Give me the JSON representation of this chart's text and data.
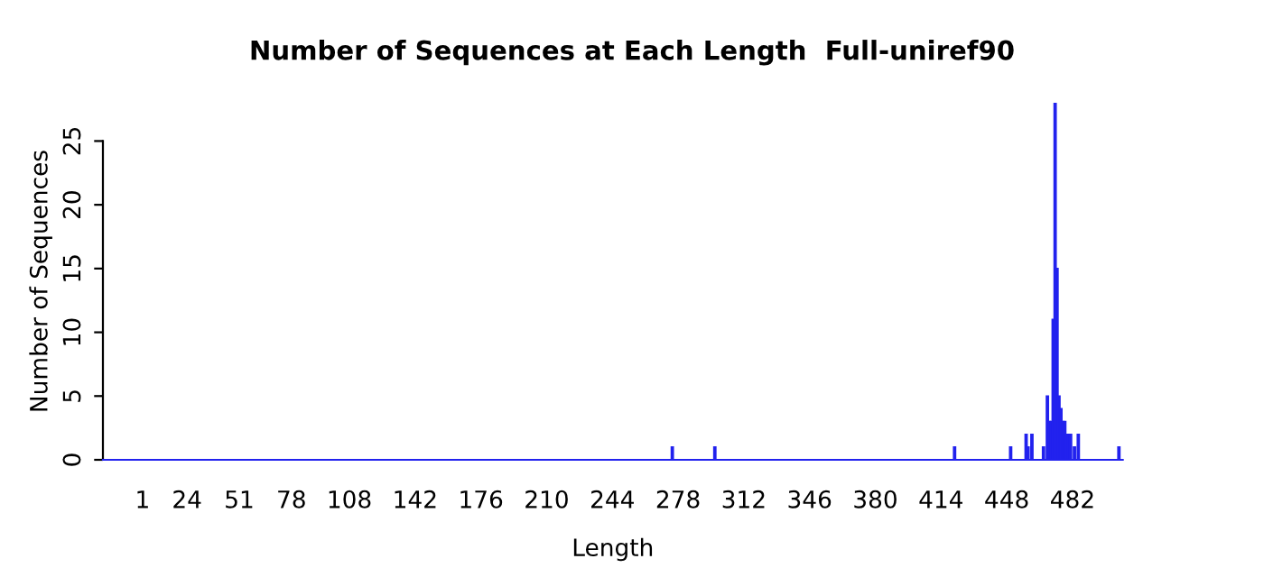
{
  "chart_data": {
    "type": "bar",
    "title": "Number of Sequences at Each Length  Full-uniref90",
    "xlabel": "Length",
    "ylabel": "Number of Sequences",
    "x": [
      275,
      297,
      421,
      450,
      458,
      459,
      461,
      467,
      469,
      470,
      471,
      472,
      473,
      474,
      475,
      476,
      477,
      478,
      479,
      480,
      481,
      483,
      485,
      506
    ],
    "values": [
      1,
      1,
      1,
      1,
      2,
      1,
      2,
      1,
      5,
      3,
      3,
      11,
      28,
      15,
      5,
      4,
      3,
      3,
      2,
      2,
      2,
      1,
      2,
      1
    ],
    "color": "#2222ee",
    "xlim": [
      -19.5,
      508
    ],
    "xticks": [
      1,
      24,
      51,
      78,
      108,
      142,
      176,
      210,
      244,
      278,
      312,
      346,
      380,
      414,
      448,
      482
    ],
    "ylim": [
      0,
      28
    ],
    "yticks": [
      0,
      5,
      10,
      15,
      20,
      25
    ],
    "grid": false,
    "legend": false
  }
}
